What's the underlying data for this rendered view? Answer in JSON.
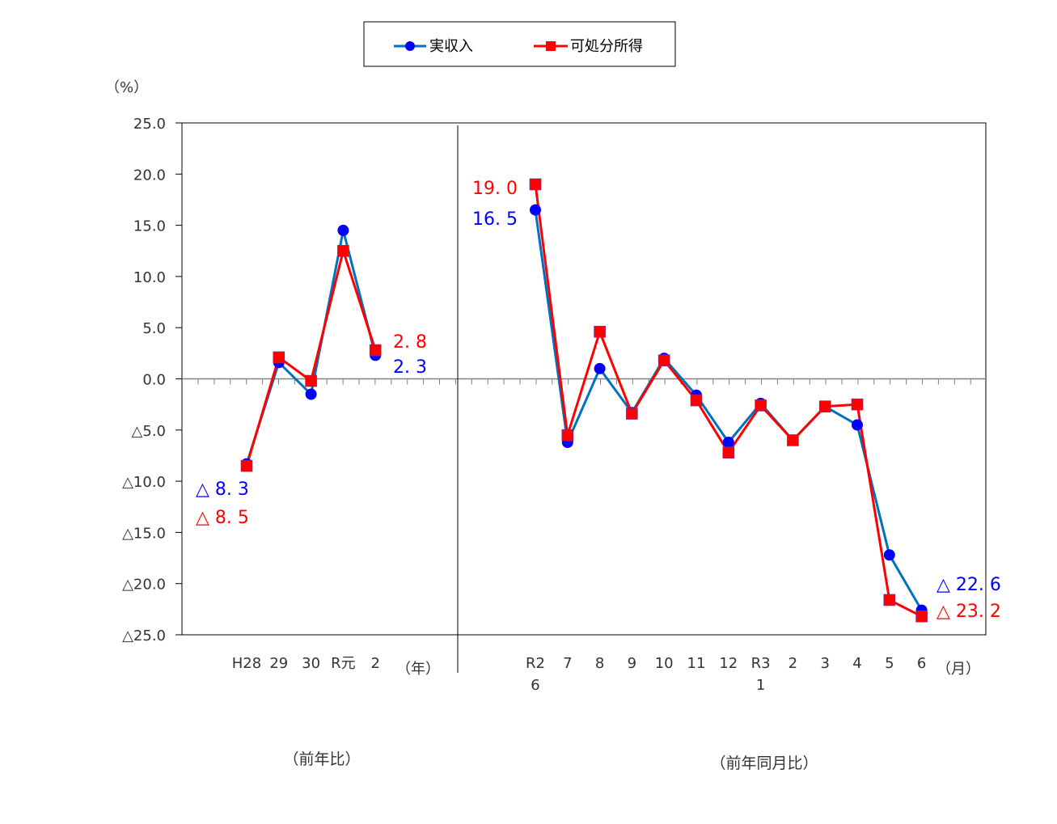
{
  "chart_data": {
    "type": "line",
    "unit_label": "（%）",
    "ylim": [
      -25,
      25
    ],
    "y_ticks": [
      "25.0",
      "20.0",
      "15.0",
      "10.0",
      "5.0",
      "0.0",
      "△5.0",
      "△10.0",
      "△15.0",
      "△20.0",
      "△25.0"
    ],
    "y_tick_values": [
      25,
      20,
      15,
      10,
      5,
      0,
      -5,
      -10,
      -15,
      -20,
      -25
    ],
    "legend": [
      "実収入",
      "可処分所得"
    ],
    "legend_placement": "top-center",
    "panels": [
      {
        "name": "annual",
        "categories": [
          "H28",
          "29",
          "30",
          "R元",
          "2"
        ],
        "category_sub": [
          "",
          "",
          "",
          "",
          ""
        ],
        "axis_unit": "（年）",
        "caption": "（前年比）",
        "series": [
          {
            "name": "実収入",
            "color": "#0000ff",
            "line_color": "#0070c0",
            "marker": "circle",
            "values": [
              -8.3,
              1.6,
              -1.5,
              14.5,
              2.3
            ]
          },
          {
            "name": "可処分所得",
            "color": "#ff0000",
            "line_color": "#ff0000",
            "marker": "square",
            "values": [
              -8.5,
              2.1,
              -0.2,
              12.5,
              2.8
            ]
          }
        ],
        "annotations": [
          {
            "text": "2. 8",
            "color": "#ff0000"
          },
          {
            "text": "2. 3",
            "color": "#0000ff"
          },
          {
            "text": "△  8. 3",
            "color": "#0000ff"
          },
          {
            "text": "△  8. 5",
            "color": "#ff0000"
          }
        ]
      },
      {
        "name": "monthly",
        "categories": [
          "R2",
          "7",
          "8",
          "9",
          "10",
          "11",
          "12",
          "R3",
          "2",
          "3",
          "4",
          "5",
          "6"
        ],
        "category_sub": [
          "6",
          "",
          "",
          "",
          "",
          "",
          "",
          "1",
          "",
          "",
          "",
          "",
          ""
        ],
        "axis_unit": "（月）",
        "caption": "（前年同月比）",
        "series": [
          {
            "name": "実収入",
            "color": "#0000ff",
            "line_color": "#0070c0",
            "marker": "circle",
            "values": [
              16.5,
              -6.2,
              1.0,
              -3.3,
              2.0,
              -1.6,
              -6.2,
              -2.4,
              -6.0,
              -2.7,
              -4.5,
              -17.2,
              -22.6
            ]
          },
          {
            "name": "可処分所得",
            "color": "#ff0000",
            "line_color": "#ff0000",
            "marker": "square",
            "values": [
              19.0,
              -5.5,
              4.6,
              -3.4,
              1.8,
              -2.1,
              -7.2,
              -2.6,
              -6.0,
              -2.7,
              -2.5,
              -21.6,
              -23.2
            ]
          }
        ],
        "annotations": [
          {
            "text": "19. 0",
            "color": "#ff0000"
          },
          {
            "text": "16. 5",
            "color": "#0000ff"
          },
          {
            "text": "△  22. 6",
            "color": "#0000ff"
          },
          {
            "text": "△  23. 2",
            "color": "#ff0000"
          }
        ]
      }
    ]
  }
}
